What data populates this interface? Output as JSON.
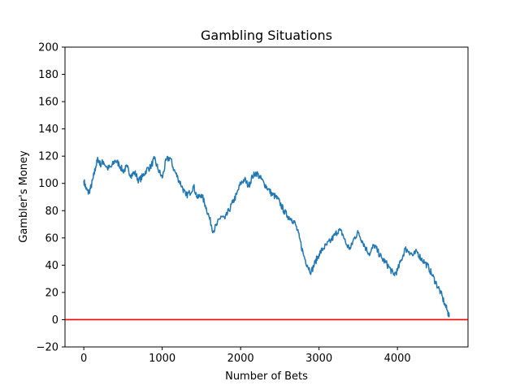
{
  "chart_data": {
    "type": "line",
    "title": "Gambling Situations",
    "xlabel": "Number of Bets",
    "ylabel": "Gambler's Money",
    "xlim": [
      -240,
      4900
    ],
    "ylim": [
      -20,
      200
    ],
    "xticks": [
      0,
      1000,
      2000,
      3000,
      4000
    ],
    "yticks": [
      -20,
      0,
      20,
      40,
      60,
      80,
      100,
      120,
      140,
      160,
      180,
      200
    ],
    "grid": false,
    "series": [
      {
        "color": "#1f77b4",
        "points": [
          [
            0,
            102
          ],
          [
            30,
            96
          ],
          [
            60,
            93
          ],
          [
            90,
            97
          ],
          [
            120,
            104
          ],
          [
            150,
            112
          ],
          [
            180,
            118
          ],
          [
            210,
            114
          ],
          [
            250,
            116
          ],
          [
            300,
            111
          ],
          [
            350,
            112
          ],
          [
            400,
            117
          ],
          [
            450,
            114
          ],
          [
            500,
            109
          ],
          [
            550,
            112
          ],
          [
            600,
            106
          ],
          [
            650,
            108
          ],
          [
            700,
            102
          ],
          [
            750,
            105
          ],
          [
            800,
            110
          ],
          [
            850,
            112
          ],
          [
            900,
            118
          ],
          [
            950,
            110
          ],
          [
            1000,
            104
          ],
          [
            1050,
            117
          ],
          [
            1100,
            119
          ],
          [
            1150,
            110
          ],
          [
            1200,
            104
          ],
          [
            1250,
            98
          ],
          [
            1300,
            91
          ],
          [
            1350,
            93
          ],
          [
            1400,
            98
          ],
          [
            1450,
            89
          ],
          [
            1500,
            92
          ],
          [
            1550,
            84
          ],
          [
            1600,
            75
          ],
          [
            1650,
            65
          ],
          [
            1700,
            70
          ],
          [
            1750,
            76
          ],
          [
            1800,
            74
          ],
          [
            1850,
            80
          ],
          [
            1900,
            86
          ],
          [
            1950,
            92
          ],
          [
            2000,
            100
          ],
          [
            2050,
            103
          ],
          [
            2100,
            98
          ],
          [
            2150,
            105
          ],
          [
            2200,
            108
          ],
          [
            2250,
            104
          ],
          [
            2300,
            100
          ],
          [
            2350,
            96
          ],
          [
            2400,
            92
          ],
          [
            2450,
            90
          ],
          [
            2500,
            86
          ],
          [
            2550,
            80
          ],
          [
            2600,
            76
          ],
          [
            2650,
            74
          ],
          [
            2700,
            70
          ],
          [
            2750,
            60
          ],
          [
            2800,
            48
          ],
          [
            2850,
            40
          ],
          [
            2900,
            35
          ],
          [
            2950,
            42
          ],
          [
            3000,
            48
          ],
          [
            3050,
            52
          ],
          [
            3100,
            55
          ],
          [
            3150,
            58
          ],
          [
            3200,
            62
          ],
          [
            3250,
            66
          ],
          [
            3300,
            63
          ],
          [
            3350,
            55
          ],
          [
            3400,
            52
          ],
          [
            3450,
            60
          ],
          [
            3500,
            64
          ],
          [
            3550,
            58
          ],
          [
            3600,
            52
          ],
          [
            3650,
            48
          ],
          [
            3700,
            55
          ],
          [
            3750,
            50
          ],
          [
            3800,
            45
          ],
          [
            3850,
            42
          ],
          [
            3900,
            38
          ],
          [
            3950,
            33
          ],
          [
            4000,
            36
          ],
          [
            4050,
            44
          ],
          [
            4100,
            52
          ],
          [
            4150,
            50
          ],
          [
            4200,
            47
          ],
          [
            4250,
            50
          ],
          [
            4300,
            45
          ],
          [
            4350,
            42
          ],
          [
            4400,
            38
          ],
          [
            4450,
            32
          ],
          [
            4500,
            26
          ],
          [
            4550,
            20
          ],
          [
            4600,
            12
          ],
          [
            4640,
            6
          ],
          [
            4660,
            2
          ]
        ]
      }
    ],
    "hline": {
      "y": 0,
      "color": "#ff0000"
    }
  }
}
